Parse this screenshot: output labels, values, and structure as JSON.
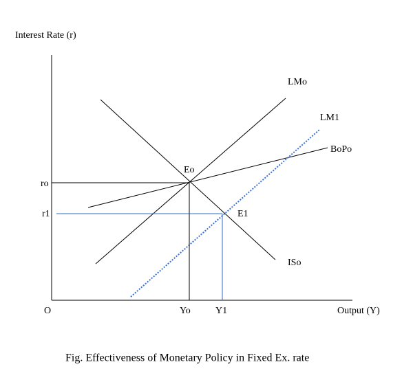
{
  "axes": {
    "y_label": "Interest Rate (r)",
    "x_label": "Output (Y)",
    "origin": "O"
  },
  "rates": [
    "ro",
    "r1"
  ],
  "outputs": [
    "Yo",
    "Y1"
  ],
  "curves": {
    "lm0": "LMo",
    "lm1": "LM1",
    "bp": "BoPo",
    "is": "ISo"
  },
  "equilibria": [
    "Eo",
    "E1"
  ],
  "caption": "Fig. Effectiveness of Monetary Policy in Fixed Ex. rate"
}
